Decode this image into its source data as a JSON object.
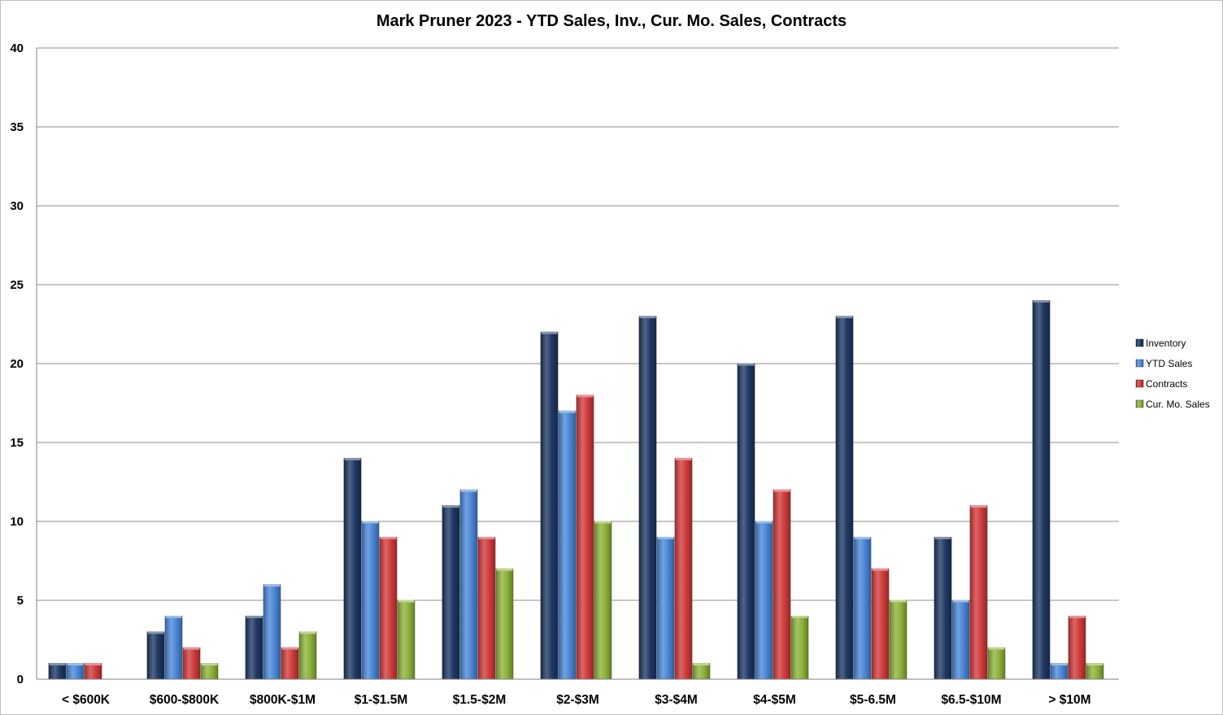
{
  "chart_data": {
    "type": "bar",
    "title": "Mark Pruner 2023 - YTD Sales, Inv., Cur. Mo. Sales, Contracts",
    "xlabel": "",
    "ylabel": "",
    "ylim": [
      0,
      40
    ],
    "yticks": [
      0,
      5,
      10,
      15,
      20,
      25,
      30,
      35,
      40
    ],
    "grid": true,
    "legend_position": "right",
    "categories": [
      "< $600K",
      "$600-$800K",
      "$800K-$1M",
      "$1-$1.5M",
      "$1.5-$2M",
      "$2-$3M",
      "$3-$4M",
      "$4-$5M",
      "$5-6.5M",
      "$6.5-$10M",
      "> $10M"
    ],
    "series": [
      {
        "name": "Inventory",
        "color": "#1f3864",
        "values": [
          1,
          3,
          4,
          14,
          11,
          22,
          23,
          20,
          23,
          9,
          24
        ]
      },
      {
        "name": "YTD Sales",
        "color": "#4a86d6",
        "values": [
          1,
          4,
          6,
          10,
          12,
          17,
          9,
          10,
          9,
          5,
          1
        ]
      },
      {
        "name": "Contracts",
        "color": "#d13b3b",
        "values": [
          1,
          2,
          2,
          9,
          9,
          18,
          14,
          12,
          7,
          11,
          4
        ]
      },
      {
        "name": "Cur. Mo. Sales",
        "color": "#8db23a",
        "values": [
          0,
          1,
          3,
          5,
          7,
          10,
          1,
          4,
          5,
          2,
          1
        ]
      }
    ]
  }
}
